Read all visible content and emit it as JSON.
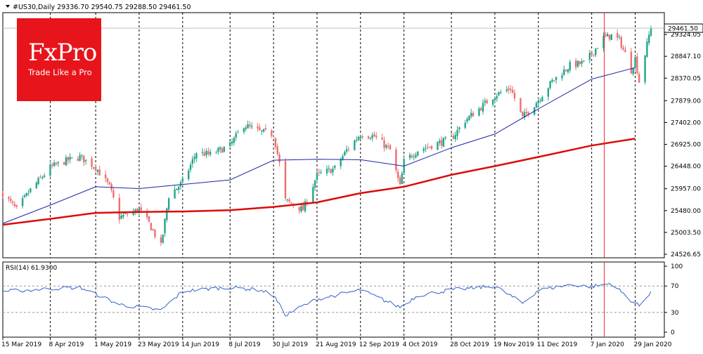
{
  "chart_data": [
    {
      "type": "candlestick",
      "symbol_line": "#US30,Daily  29336.70  29540.75  29288.50  29461.50",
      "last_price_label": "29461.50",
      "ylim": [
        24450,
        29800
      ],
      "y_ticks": [
        "29324.05",
        "28847.10",
        "28370.05",
        "27879.00",
        "27402.00",
        "26925.00",
        "26448.00",
        "25957.00",
        "25480.00",
        "25003.50",
        "24526.65"
      ],
      "y_tick_values": [
        29324.05,
        28847.1,
        28370.05,
        27879.0,
        27402.0,
        26925.0,
        26448.0,
        25957.0,
        25480.0,
        25003.5,
        24526.65
      ],
      "x_labels": [
        "15 Mar 2019",
        "8 Apr 2019",
        "1 May 2019",
        "23 May 2019",
        "14 Jun 2019",
        "8 Jul 2019",
        "30 Jul 2019",
        "21 Aug 2019",
        "12 Sep 2019",
        "4 Oct 2019",
        "28 Oct 2019",
        "19 Nov 2019",
        "11 Dec 2019",
        "7 Jan 2020",
        "29 Jan 2020"
      ],
      "close_path": [
        [
          "15 Mar 2019",
          25850
        ],
        [
          "22 Mar 2019",
          25500
        ],
        [
          "29 Mar 2019",
          25930
        ],
        [
          "8 Apr 2019",
          26420
        ],
        [
          "15 Apr 2019",
          26550
        ],
        [
          "23 Apr 2019",
          26650
        ],
        [
          "1 May 2019",
          26430
        ],
        [
          "8 May 2019",
          26000
        ],
        [
          "13 May 2019",
          25330
        ],
        [
          "23 May 2019",
          25500
        ],
        [
          "28 May 2019",
          25200
        ],
        [
          "3 Jun 2019",
          24700
        ],
        [
          "7 Jun 2019",
          25800
        ],
        [
          "14 Jun 2019",
          26100
        ],
        [
          "21 Jun 2019",
          26750
        ],
        [
          "28 Jun 2019",
          26700
        ],
        [
          "8 Jul 2019",
          26900
        ],
        [
          "15 Jul 2019",
          27350
        ],
        [
          "23 Jul 2019",
          27200
        ],
        [
          "30 Jul 2019",
          27150
        ],
        [
          "2 Aug 2019",
          26500
        ],
        [
          "5 Aug 2019",
          25700
        ],
        [
          "14 Aug 2019",
          25500
        ],
        [
          "21 Aug 2019",
          26250
        ],
        [
          "30 Aug 2019",
          26400
        ],
        [
          "5 Sep 2019",
          26800
        ],
        [
          "12 Sep 2019",
          27150
        ],
        [
          "19 Sep 2019",
          27100
        ],
        [
          "27 Sep 2019",
          26800
        ],
        [
          "2 Oct 2019",
          26000
        ],
        [
          "4 Oct 2019",
          26550
        ],
        [
          "11 Oct 2019",
          26800
        ],
        [
          "18 Oct 2019",
          26900
        ],
        [
          "28 Oct 2019",
          27050
        ],
        [
          "4 Nov 2019",
          27450
        ],
        [
          "11 Nov 2019",
          27700
        ],
        [
          "19 Nov 2019",
          28000
        ],
        [
          "27 Nov 2019",
          28150
        ],
        [
          "3 Dec 2019",
          27500
        ],
        [
          "11 Dec 2019",
          27900
        ],
        [
          "18 Dec 2019",
          28300
        ],
        [
          "27 Dec 2019",
          28650
        ],
        [
          "3 Jan 2020",
          28700
        ],
        [
          "7 Jan 2020",
          28900
        ],
        [
          "13 Jan 2020",
          29250
        ],
        [
          "17 Jan 2020",
          29300
        ],
        [
          "21 Jan 2020",
          29200
        ],
        [
          "24 Jan 2020",
          28900
        ],
        [
          "27 Jan 2020",
          28550
        ],
        [
          "29 Jan 2020",
          28800
        ],
        [
          "31 Jan 2020",
          28300
        ],
        [
          "5 Feb 2020",
          29300
        ],
        [
          "6 Feb 2020",
          29461.5
        ]
      ],
      "sma_blue_path": [
        [
          "15 Mar 2019",
          25200
        ],
        [
          "8 Apr 2019",
          25600
        ],
        [
          "1 May 2019",
          26000
        ],
        [
          "23 May 2019",
          25960
        ],
        [
          "14 Jun 2019",
          26050
        ],
        [
          "8 Jul 2019",
          26150
        ],
        [
          "30 Jul 2019",
          26580
        ],
        [
          "21 Aug 2019",
          26600
        ],
        [
          "12 Sep 2019",
          26590
        ],
        [
          "4 Oct 2019",
          26450
        ],
        [
          "28 Oct 2019",
          26850
        ],
        [
          "19 Nov 2019",
          27150
        ],
        [
          "11 Dec 2019",
          27700
        ],
        [
          "7 Jan 2020",
          28350
        ],
        [
          "29 Jan 2020",
          28600
        ]
      ],
      "sma_red_path": [
        [
          "15 Mar 2019",
          25170
        ],
        [
          "8 Apr 2019",
          25300
        ],
        [
          "1 May 2019",
          25430
        ],
        [
          "23 May 2019",
          25450
        ],
        [
          "14 Jun 2019",
          25460
        ],
        [
          "8 Jul 2019",
          25490
        ],
        [
          "30 Jul 2019",
          25560
        ],
        [
          "21 Aug 2019",
          25660
        ],
        [
          "12 Sep 2019",
          25860
        ],
        [
          "4 Oct 2019",
          26000
        ],
        [
          "28 Oct 2019",
          26260
        ],
        [
          "19 Nov 2019",
          26450
        ],
        [
          "11 Dec 2019",
          26650
        ],
        [
          "7 Jan 2020",
          26900
        ],
        [
          "29 Jan 2020",
          27050
        ]
      ],
      "colors": {
        "up": "#22a58a",
        "down": "#ee6f6f",
        "sma_blue": "#1c24a8",
        "sma_red": "#dd0b0b",
        "marker": "#e4232a"
      }
    },
    {
      "type": "line",
      "label": "RSI(14) 61.9300",
      "ylim": [
        0,
        100
      ],
      "y_ticks": [
        "100",
        "70",
        "30",
        "0"
      ],
      "y_tick_values": [
        100,
        70,
        30,
        0
      ],
      "levels": [
        70,
        30
      ],
      "path": [
        [
          "15 Mar 2019",
          62
        ],
        [
          "29 Mar 2019",
          64
        ],
        [
          "8 Apr 2019",
          66
        ],
        [
          "23 Apr 2019",
          68
        ],
        [
          "1 May 2019",
          58
        ],
        [
          "13 May 2019",
          42
        ],
        [
          "23 May 2019",
          38
        ],
        [
          "3 Jun 2019",
          33
        ],
        [
          "14 Jun 2019",
          62
        ],
        [
          "28 Jun 2019",
          66
        ],
        [
          "8 Jul 2019",
          68
        ],
        [
          "23 Jul 2019",
          64
        ],
        [
          "30 Jul 2019",
          56
        ],
        [
          "5 Aug 2019",
          26
        ],
        [
          "14 Aug 2019",
          40
        ],
        [
          "21 Aug 2019",
          50
        ],
        [
          "12 Sep 2019",
          64
        ],
        [
          "2 Oct 2019",
          38
        ],
        [
          "11 Oct 2019",
          56
        ],
        [
          "28 Oct 2019",
          64
        ],
        [
          "19 Nov 2019",
          70
        ],
        [
          "3 Dec 2019",
          44
        ],
        [
          "11 Dec 2019",
          64
        ],
        [
          "27 Dec 2019",
          72
        ],
        [
          "7 Jan 2020",
          69
        ],
        [
          "17 Jan 2020",
          74
        ],
        [
          "27 Jan 2020",
          48
        ],
        [
          "31 Jan 2020",
          40
        ],
        [
          "6 Feb 2020",
          61.93
        ]
      ],
      "color": "#3060c8"
    }
  ],
  "logo": {
    "brand": "FxPro",
    "tagline": "Trade Like a Pro"
  }
}
